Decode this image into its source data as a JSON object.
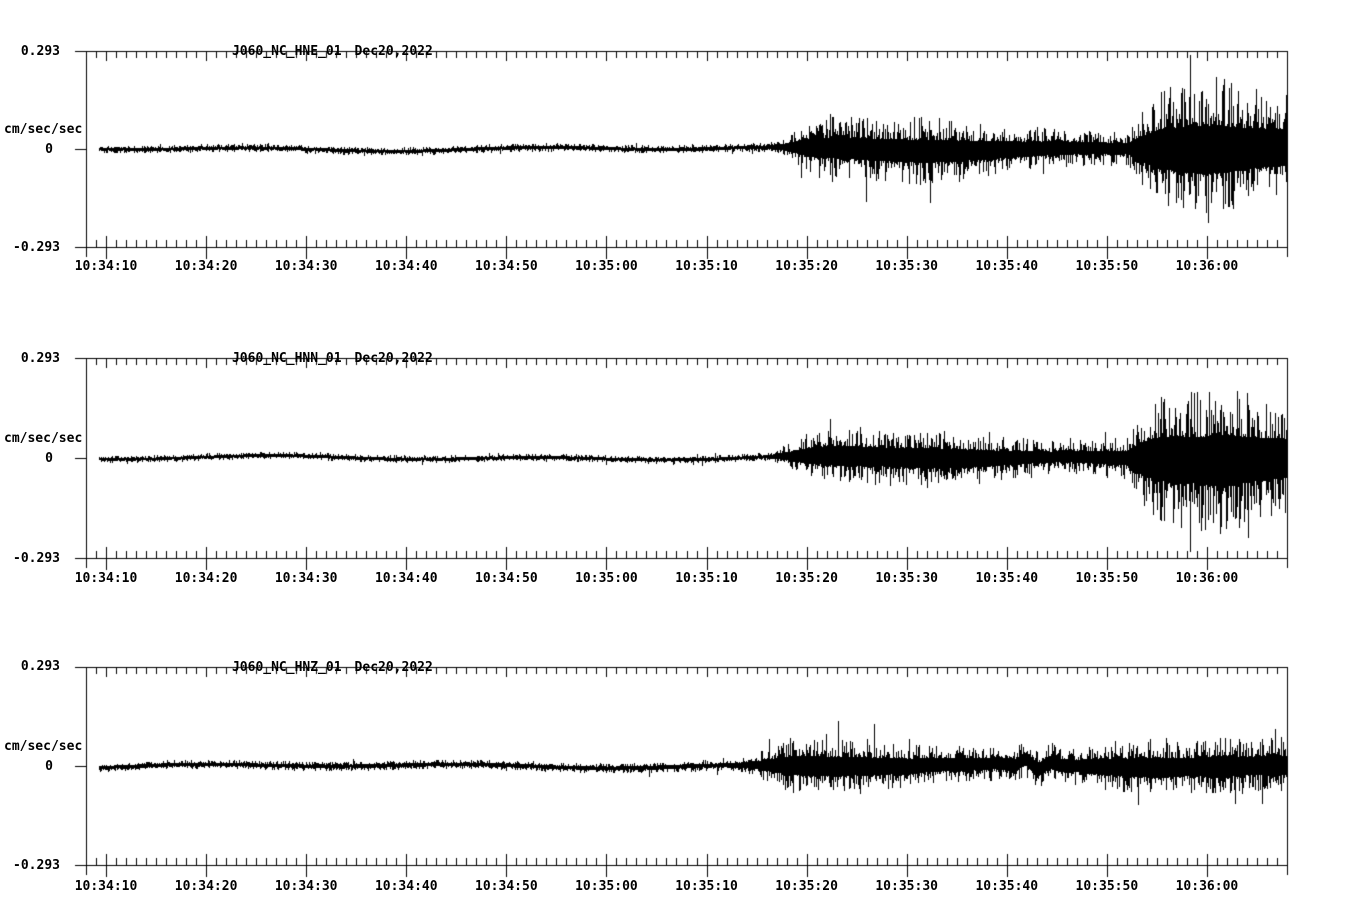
{
  "colors": {
    "background": "#ffffff",
    "ink": "#000000"
  },
  "chart_data": [
    {
      "type": "line",
      "kind": "seismogram-trace",
      "title": "J060_NC_HNE_01",
      "date_label": "Dec20,2022",
      "ylabel": "cm/sec/sec",
      "ylim": [
        -0.293,
        0.293
      ],
      "ytick_labels": [
        "0.293",
        "0",
        "-0.293"
      ],
      "xtick_labels": [
        "10:34:10",
        "10:34:20",
        "10:34:30",
        "10:34:40",
        "10:34:50",
        "10:35:00",
        "10:35:10",
        "10:35:20",
        "10:35:30",
        "10:35:40",
        "10:35:50",
        "10:36:00"
      ],
      "x_window": {
        "start": "10:34:08",
        "end": "10:36:08",
        "duration_s": 120
      },
      "xtick_major_s": 10,
      "xtick_minor_s": 1,
      "grid": false,
      "legend": false,
      "seed": 7,
      "data_start_s": 1.2,
      "envelope": [
        [
          1.2,
          0.012
        ],
        [
          40,
          0.013
        ],
        [
          62,
          0.013
        ],
        [
          68,
          0.014
        ],
        [
          70,
          0.03
        ],
        [
          71.5,
          0.07
        ],
        [
          73,
          0.092
        ],
        [
          76,
          0.095
        ],
        [
          80,
          0.1
        ],
        [
          84,
          0.105
        ],
        [
          88,
          0.09
        ],
        [
          92,
          0.075
        ],
        [
          96,
          0.062
        ],
        [
          100,
          0.055
        ],
        [
          104,
          0.05
        ],
        [
          105.5,
          0.12
        ],
        [
          107,
          0.175
        ],
        [
          109,
          0.2
        ],
        [
          111,
          0.215
        ],
        [
          113,
          0.22
        ],
        [
          115,
          0.195
        ],
        [
          117,
          0.18
        ],
        [
          119,
          0.17
        ],
        [
          120,
          0.16
        ]
      ]
    },
    {
      "type": "line",
      "kind": "seismogram-trace",
      "title": "J060_NC_HNN_01",
      "date_label": "Dec20,2022",
      "ylabel": "cm/sec/sec",
      "ylim": [
        -0.293,
        0.293
      ],
      "ytick_labels": [
        "0.293",
        "0",
        "-0.293"
      ],
      "xtick_labels": [
        "10:34:10",
        "10:34:20",
        "10:34:30",
        "10:34:40",
        "10:34:50",
        "10:35:00",
        "10:35:10",
        "10:35:20",
        "10:35:30",
        "10:35:40",
        "10:35:50",
        "10:36:00"
      ],
      "x_window": {
        "start": "10:34:08",
        "end": "10:36:08",
        "duration_s": 120
      },
      "xtick_major_s": 10,
      "xtick_minor_s": 1,
      "grid": false,
      "legend": false,
      "seed": 13,
      "data_start_s": 1.2,
      "envelope": [
        [
          1.2,
          0.011
        ],
        [
          40,
          0.012
        ],
        [
          64,
          0.012
        ],
        [
          68,
          0.013
        ],
        [
          70,
          0.035
        ],
        [
          72,
          0.07
        ],
        [
          74,
          0.085
        ],
        [
          76,
          0.09
        ],
        [
          79,
          0.085
        ],
        [
          82,
          0.092
        ],
        [
          85,
          0.088
        ],
        [
          88,
          0.082
        ],
        [
          91,
          0.068
        ],
        [
          94,
          0.058
        ],
        [
          97,
          0.048
        ],
        [
          100,
          0.052
        ],
        [
          102,
          0.058
        ],
        [
          104,
          0.065
        ],
        [
          105.5,
          0.15
        ],
        [
          107,
          0.195
        ],
        [
          109,
          0.215
        ],
        [
          111,
          0.205
        ],
        [
          113,
          0.235
        ],
        [
          114.5,
          0.225
        ],
        [
          116,
          0.205
        ],
        [
          118,
          0.19
        ],
        [
          120,
          0.175
        ]
      ]
    },
    {
      "type": "line",
      "kind": "seismogram-trace",
      "title": "J060_NC_HNZ_01",
      "date_label": "Dec20,2022",
      "ylabel": "cm/sec/sec",
      "ylim": [
        -0.293,
        0.293
      ],
      "ytick_labels": [
        "0.293",
        "0",
        "-0.293"
      ],
      "xtick_labels": [
        "10:34:10",
        "10:34:20",
        "10:34:30",
        "10:34:40",
        "10:34:50",
        "10:35:00",
        "10:35:10",
        "10:35:20",
        "10:35:30",
        "10:35:40",
        "10:35:50",
        "10:36:00"
      ],
      "x_window": {
        "start": "10:34:08",
        "end": "10:36:08",
        "duration_s": 120
      },
      "xtick_major_s": 10,
      "xtick_minor_s": 1,
      "grid": false,
      "legend": false,
      "seed": 21,
      "data_start_s": 1.2,
      "wobble": {
        "t0": 94.5,
        "amp": 5,
        "freq": 2.2,
        "width": 2.5
      },
      "envelope": [
        [
          1.2,
          0.014
        ],
        [
          40,
          0.015
        ],
        [
          60,
          0.016
        ],
        [
          64,
          0.018
        ],
        [
          66,
          0.025
        ],
        [
          68,
          0.048
        ],
        [
          70,
          0.08
        ],
        [
          72,
          0.092
        ],
        [
          74,
          0.088
        ],
        [
          76,
          0.082
        ],
        [
          78,
          0.086
        ],
        [
          80,
          0.075
        ],
        [
          83,
          0.065
        ],
        [
          86,
          0.058
        ],
        [
          90,
          0.053
        ],
        [
          94,
          0.058
        ],
        [
          97,
          0.063
        ],
        [
          99,
          0.055
        ],
        [
          101,
          0.07
        ],
        [
          103,
          0.078
        ],
        [
          105,
          0.083
        ],
        [
          107,
          0.095
        ],
        [
          109,
          0.085
        ],
        [
          111,
          0.08
        ],
        [
          113,
          0.1
        ],
        [
          115,
          0.085
        ],
        [
          117,
          0.082
        ],
        [
          118.5,
          0.092
        ],
        [
          120,
          0.085
        ]
      ]
    }
  ]
}
